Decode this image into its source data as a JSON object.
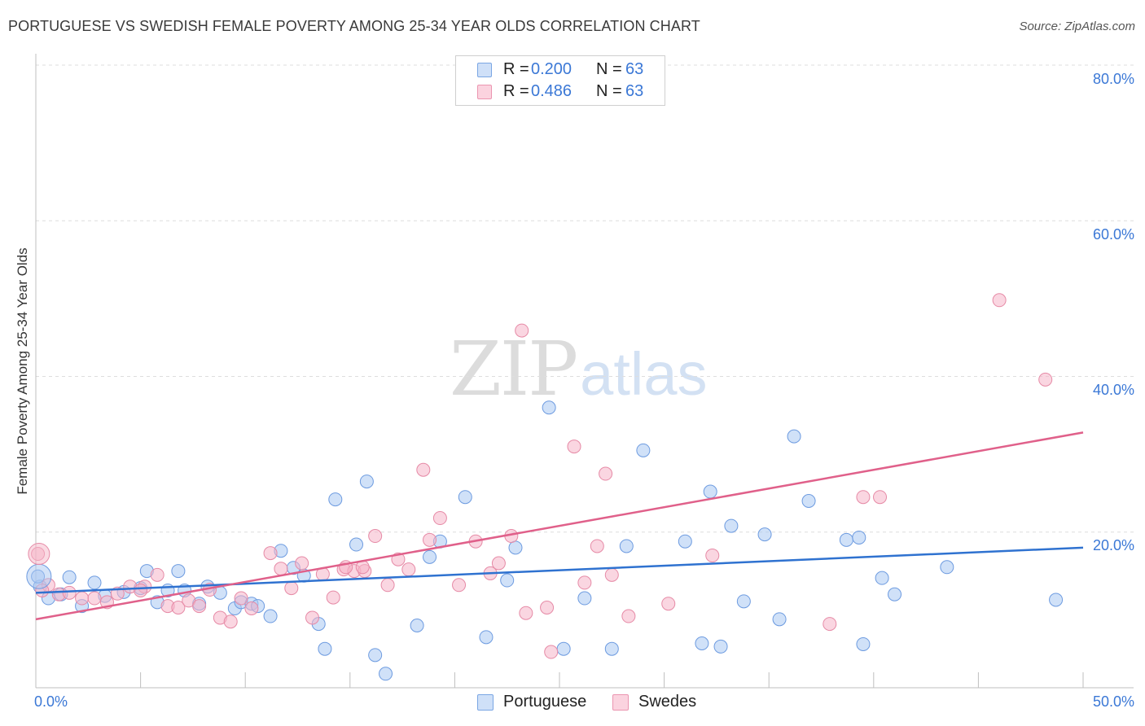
{
  "title": "PORTUGUESE VS SWEDISH FEMALE POVERTY AMONG 25-34 YEAR OLDS CORRELATION CHART",
  "source": "Source: ZipAtlas.com",
  "watermark": {
    "zip": "ZIP",
    "atlas": "atlas"
  },
  "legend": {
    "portuguese": {
      "r_label": "R =",
      "r_value": "0.200",
      "n_label": "N =",
      "n_value": "63",
      "color": "#a9c8f2"
    },
    "swedes": {
      "r_label": "R =",
      "r_value": "0.486",
      "n_label": "N =",
      "n_value": "63",
      "color": "#f5b5c8"
    }
  },
  "bottom_legend": {
    "portuguese": "Portuguese",
    "swedes": "Swedes"
  },
  "chart_data": {
    "type": "scatter",
    "title": "PORTUGUESE VS SWEDISH FEMALE POVERTY AMONG 25-34 YEAR OLDS CORRELATION CHART",
    "xlabel": "",
    "ylabel": "Female Poverty Among 25-34 Year Olds",
    "xlim": [
      0,
      50
    ],
    "ylim": [
      0,
      80
    ],
    "x_tick_labels": [
      "0.0%",
      "50.0%"
    ],
    "y_tick_labels": [
      "20.0%",
      "40.0%",
      "60.0%",
      "80.0%"
    ],
    "y_ticks": [
      20,
      40,
      60,
      80
    ],
    "grid": "horizontal dashed",
    "series": [
      {
        "name": "Portuguese",
        "color": "#a9c8f2",
        "stroke": "#6d9be0",
        "line_color": "#2f72d0",
        "trend": {
          "x": [
            0,
            50
          ],
          "y": [
            12.2,
            18.0
          ]
        },
        "points": [
          [
            0.2,
            13.0
          ],
          [
            0.6,
            11.5
          ],
          [
            1.2,
            12.0
          ],
          [
            2.2,
            10.5
          ],
          [
            2.8,
            13.5
          ],
          [
            3.3,
            11.8
          ],
          [
            4.2,
            12.3
          ],
          [
            5.0,
            12.8
          ],
          [
            5.3,
            15.0
          ],
          [
            5.8,
            11.0
          ],
          [
            6.3,
            12.5
          ],
          [
            6.8,
            15.0
          ],
          [
            7.1,
            12.5
          ],
          [
            7.8,
            10.8
          ],
          [
            8.2,
            13.0
          ],
          [
            8.8,
            12.2
          ],
          [
            9.5,
            10.2
          ],
          [
            9.8,
            11.0
          ],
          [
            10.3,
            10.8
          ],
          [
            10.6,
            10.5
          ],
          [
            11.2,
            9.2
          ],
          [
            11.7,
            17.6
          ],
          [
            12.3,
            15.4
          ],
          [
            12.8,
            14.4
          ],
          [
            13.5,
            8.2
          ],
          [
            13.8,
            5.0
          ],
          [
            14.3,
            24.2
          ],
          [
            15.3,
            18.4
          ],
          [
            15.8,
            26.5
          ],
          [
            16.2,
            4.2
          ],
          [
            16.7,
            1.8
          ],
          [
            18.2,
            8.0
          ],
          [
            18.8,
            16.8
          ],
          [
            19.3,
            18.8
          ],
          [
            20.5,
            24.5
          ],
          [
            21.5,
            6.5
          ],
          [
            22.5,
            13.8
          ],
          [
            22.9,
            18.0
          ],
          [
            24.5,
            36.0
          ],
          [
            25.2,
            5.0
          ],
          [
            26.2,
            11.5
          ],
          [
            27.5,
            5.0
          ],
          [
            28.2,
            18.2
          ],
          [
            29.0,
            30.5
          ],
          [
            31.0,
            18.8
          ],
          [
            31.8,
            5.7
          ],
          [
            32.2,
            25.2
          ],
          [
            32.7,
            5.3
          ],
          [
            33.2,
            20.8
          ],
          [
            33.8,
            11.1
          ],
          [
            34.8,
            19.7
          ],
          [
            35.5,
            8.8
          ],
          [
            36.2,
            32.3
          ],
          [
            36.9,
            24.0
          ],
          [
            38.7,
            19.0
          ],
          [
            39.3,
            19.3
          ],
          [
            39.5,
            5.6
          ],
          [
            40.4,
            14.1
          ],
          [
            41.0,
            12.0
          ],
          [
            43.5,
            15.5
          ],
          [
            48.7,
            11.3
          ],
          [
            0.1,
            14.3
          ],
          [
            1.6,
            14.2
          ]
        ]
      },
      {
        "name": "Swedes",
        "color": "#f5b5c8",
        "stroke": "#e68aa6",
        "line_color": "#e0608a",
        "trend": {
          "x": [
            0,
            50
          ],
          "y": [
            8.8,
            32.8
          ]
        },
        "points": [
          [
            0.1,
            17.2
          ],
          [
            0.6,
            13.2
          ],
          [
            1.1,
            12.0
          ],
          [
            1.6,
            12.2
          ],
          [
            2.2,
            11.5
          ],
          [
            2.8,
            11.5
          ],
          [
            3.4,
            11.0
          ],
          [
            3.9,
            12.1
          ],
          [
            4.5,
            13.0
          ],
          [
            5.2,
            13.0
          ],
          [
            5.8,
            14.5
          ],
          [
            6.3,
            10.5
          ],
          [
            6.8,
            10.3
          ],
          [
            7.3,
            11.2
          ],
          [
            7.8,
            10.5
          ],
          [
            8.3,
            12.6
          ],
          [
            8.8,
            9.0
          ],
          [
            9.3,
            8.5
          ],
          [
            9.8,
            11.5
          ],
          [
            10.3,
            10.2
          ],
          [
            11.2,
            17.3
          ],
          [
            11.7,
            15.3
          ],
          [
            12.2,
            12.8
          ],
          [
            12.7,
            16.0
          ],
          [
            13.2,
            9.0
          ],
          [
            13.7,
            14.6
          ],
          [
            14.2,
            11.6
          ],
          [
            14.7,
            15.2
          ],
          [
            15.2,
            15.0
          ],
          [
            15.7,
            15.0
          ],
          [
            16.2,
            19.5
          ],
          [
            16.8,
            13.2
          ],
          [
            17.3,
            16.5
          ],
          [
            17.8,
            15.2
          ],
          [
            18.5,
            28.0
          ],
          [
            18.8,
            19.0
          ],
          [
            19.3,
            21.8
          ],
          [
            20.2,
            13.2
          ],
          [
            21.0,
            18.8
          ],
          [
            21.7,
            14.7
          ],
          [
            22.1,
            16.0
          ],
          [
            22.7,
            19.5
          ],
          [
            23.2,
            45.9
          ],
          [
            23.4,
            9.6
          ],
          [
            24.4,
            10.3
          ],
          [
            24.6,
            4.6
          ],
          [
            25.7,
            31.0
          ],
          [
            26.2,
            13.5
          ],
          [
            26.8,
            18.2
          ],
          [
            27.2,
            27.5
          ],
          [
            27.5,
            14.5
          ],
          [
            28.3,
            9.2
          ],
          [
            30.2,
            10.8
          ],
          [
            32.3,
            17.0
          ],
          [
            37.9,
            8.2
          ],
          [
            39.5,
            24.5
          ],
          [
            40.3,
            24.5
          ],
          [
            46.0,
            49.8
          ],
          [
            48.2,
            39.6
          ],
          [
            0.3,
            12.5
          ],
          [
            15.6,
            15.5
          ],
          [
            14.8,
            15.5
          ],
          [
            5.0,
            12.5
          ]
        ]
      }
    ]
  }
}
